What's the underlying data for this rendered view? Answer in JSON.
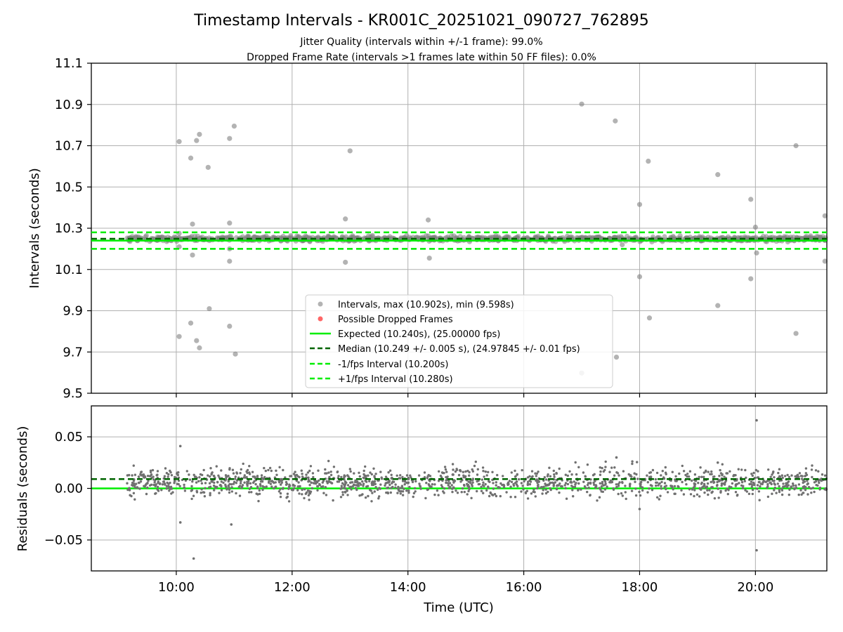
{
  "chart_data": [
    {
      "type": "scatter",
      "title": "Timestamp Intervals - KR001C_20251021_090727_762895",
      "subtitle_lines": [
        "Jitter Quality (intervals within +/-1 frame): 99.0%",
        "Dropped Frame Rate (intervals >1 frames late within 50 FF files): 0.0%"
      ],
      "ylabel": "Intervals (seconds)",
      "xlim": [
        8.533,
        21.233
      ],
      "ylim": [
        9.5,
        11.1
      ],
      "yticks": [
        9.5,
        9.7,
        9.9,
        10.1,
        10.3,
        10.5,
        10.7,
        10.9,
        11.1
      ],
      "ytick_labels": [
        "9.5",
        "9.7",
        "9.9",
        "10.1",
        "10.3",
        "10.5",
        "10.7",
        "10.9",
        "11.1"
      ],
      "xticks": [
        10,
        12,
        14,
        16,
        18,
        20
      ],
      "grid": true,
      "legend_location": "lower-center",
      "legend": [
        {
          "label": "Intervals, max (10.902s), min (9.598s)",
          "marker": "circle",
          "color": "#808080"
        },
        {
          "label": "Possible Dropped Frames",
          "marker": "circle",
          "color": "#ff0000"
        },
        {
          "label": "Expected (10.240s), (25.00000 fps)",
          "line": "solid",
          "color": "#00ee00"
        },
        {
          "label": "Median (10.249 +/- 0.005 s), (24.97845 +/- 0.01 fps)",
          "line": "dashed",
          "color": "#006400"
        },
        {
          "label": "-1/fps Interval (10.200s)",
          "line": "dashed",
          "color": "#00ee00"
        },
        {
          "label": "+1/fps Interval (10.280s)",
          "line": "dashed",
          "color": "#00ee00"
        }
      ],
      "reference_lines": {
        "expected": 10.24,
        "median": 10.249,
        "minus_one_fps": 10.2,
        "plus_one_fps": 10.28
      },
      "dense_band": {
        "x_start": 9.15,
        "x_end": 21.233,
        "center": 10.249,
        "spread": 0.006
      },
      "outliers": [
        [
          10.05,
          10.72
        ],
        [
          10.25,
          10.64
        ],
        [
          10.35,
          10.725
        ],
        [
          10.4,
          10.755
        ],
        [
          10.55,
          10.595
        ],
        [
          10.92,
          10.735
        ],
        [
          11.0,
          10.795
        ],
        [
          13.0,
          10.675
        ],
        [
          10.28,
          10.32
        ],
        [
          10.92,
          10.325
        ],
        [
          12.92,
          10.345
        ],
        [
          14.35,
          10.34
        ],
        [
          10.05,
          10.275
        ],
        [
          10.05,
          10.21
        ],
        [
          10.28,
          10.17
        ],
        [
          10.92,
          10.2
        ],
        [
          10.92,
          10.14
        ],
        [
          12.92,
          10.135
        ],
        [
          14.37,
          10.155
        ],
        [
          10.05,
          9.775
        ],
        [
          10.25,
          9.84
        ],
        [
          10.35,
          9.755
        ],
        [
          10.4,
          9.72
        ],
        [
          10.57,
          9.91
        ],
        [
          10.92,
          9.825
        ],
        [
          11.02,
          9.69
        ],
        [
          17.0,
          10.902
        ],
        [
          17.58,
          10.82
        ],
        [
          18.15,
          10.625
        ],
        [
          18.0,
          10.415
        ],
        [
          19.35,
          10.56
        ],
        [
          19.92,
          10.44
        ],
        [
          20.7,
          10.7
        ],
        [
          21.2,
          10.36
        ],
        [
          20.0,
          10.305
        ],
        [
          20.02,
          10.18
        ],
        [
          21.2,
          10.14
        ],
        [
          17.7,
          10.22
        ],
        [
          18.0,
          10.065
        ],
        [
          19.92,
          10.055
        ],
        [
          18.17,
          9.865
        ],
        [
          19.35,
          9.925
        ],
        [
          20.7,
          9.79
        ],
        [
          17.6,
          9.675
        ],
        [
          17.0,
          9.598
        ]
      ]
    },
    {
      "type": "scatter",
      "ylabel": "Residuals (seconds)",
      "xlabel": "Time (UTC)",
      "xlim": [
        8.533,
        21.233
      ],
      "ylim": [
        -0.08,
        0.08
      ],
      "yticks": [
        -0.05,
        0.0,
        0.05
      ],
      "ytick_labels": [
        "−0.05",
        "0.00",
        "0.05"
      ],
      "xticks": [
        10,
        12,
        14,
        16,
        18,
        20
      ],
      "xtick_labels": [
        "10:00",
        "12:00",
        "14:00",
        "16:00",
        "18:00",
        "20:00"
      ],
      "grid": true,
      "reference_lines": {
        "zero": 0.0,
        "median_offset": 0.009
      },
      "dense_band": {
        "x_start": 9.15,
        "x_end": 21.233,
        "center": 0.006,
        "spread": 0.007
      },
      "outliers": [
        [
          10.07,
          0.041
        ],
        [
          10.07,
          -0.033
        ],
        [
          10.3,
          -0.068
        ],
        [
          10.95,
          -0.035
        ],
        [
          20.02,
          0.066
        ],
        [
          20.02,
          -0.06
        ],
        [
          17.6,
          0.03
        ],
        [
          18.0,
          -0.02
        ],
        [
          19.35,
          0.025
        ]
      ]
    }
  ]
}
